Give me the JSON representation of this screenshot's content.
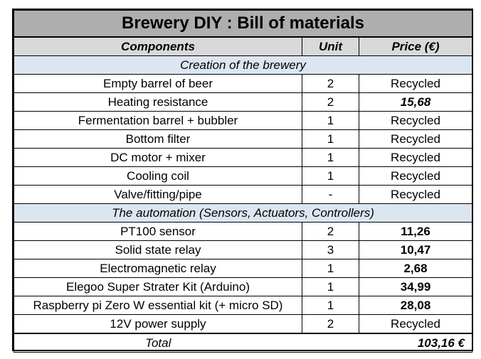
{
  "title": "Brewery DIY : Bill of materials",
  "columns": {
    "components": "Components",
    "unit": "Unit",
    "price": "Price (€)"
  },
  "sections": [
    {
      "label": "Creation of the brewery",
      "items": [
        {
          "component": "Empty barrel of beer",
          "unit": "2",
          "price": "Recycled",
          "style": "normal"
        },
        {
          "component": "Heating resistance",
          "unit": "2",
          "price": "15,68",
          "style": "bold-italic"
        },
        {
          "component": "Fermentation barrel + bubbler",
          "unit": "1",
          "price": "Recycled",
          "style": "normal"
        },
        {
          "component": "Bottom filter",
          "unit": "1",
          "price": "Recycled",
          "style": "normal"
        },
        {
          "component": "DC motor + mixer",
          "unit": "1",
          "price": "Recycled",
          "style": "normal"
        },
        {
          "component": "Cooling coil",
          "unit": "1",
          "price": "Recycled",
          "style": "normal"
        },
        {
          "component": "Valve/fitting/pipe",
          "unit": "-",
          "price": "Recycled",
          "style": "normal"
        }
      ]
    },
    {
      "label": "The automation (Sensors, Actuators, Controllers)",
      "items": [
        {
          "component": "PT100 sensor",
          "unit": "2",
          "price": "11,26",
          "style": "bold"
        },
        {
          "component": "Solid state relay",
          "unit": "3",
          "price": "10,47",
          "style": "bold"
        },
        {
          "component": "Electromagnetic relay",
          "unit": "1",
          "price": "2,68",
          "style": "bold"
        },
        {
          "component": "Elegoo Super Strater Kit (Arduino)",
          "unit": "1",
          "price": "34,99",
          "style": "bold"
        },
        {
          "component": "Raspberry pi Zero W essential kit (+ micro SD)",
          "unit": "1",
          "price": "28,08",
          "style": "bold"
        },
        {
          "component": "12V power supply",
          "unit": "2",
          "price": "Recycled",
          "style": "normal"
        }
      ]
    }
  ],
  "total": {
    "label": "Total",
    "value": "103,16 €"
  }
}
